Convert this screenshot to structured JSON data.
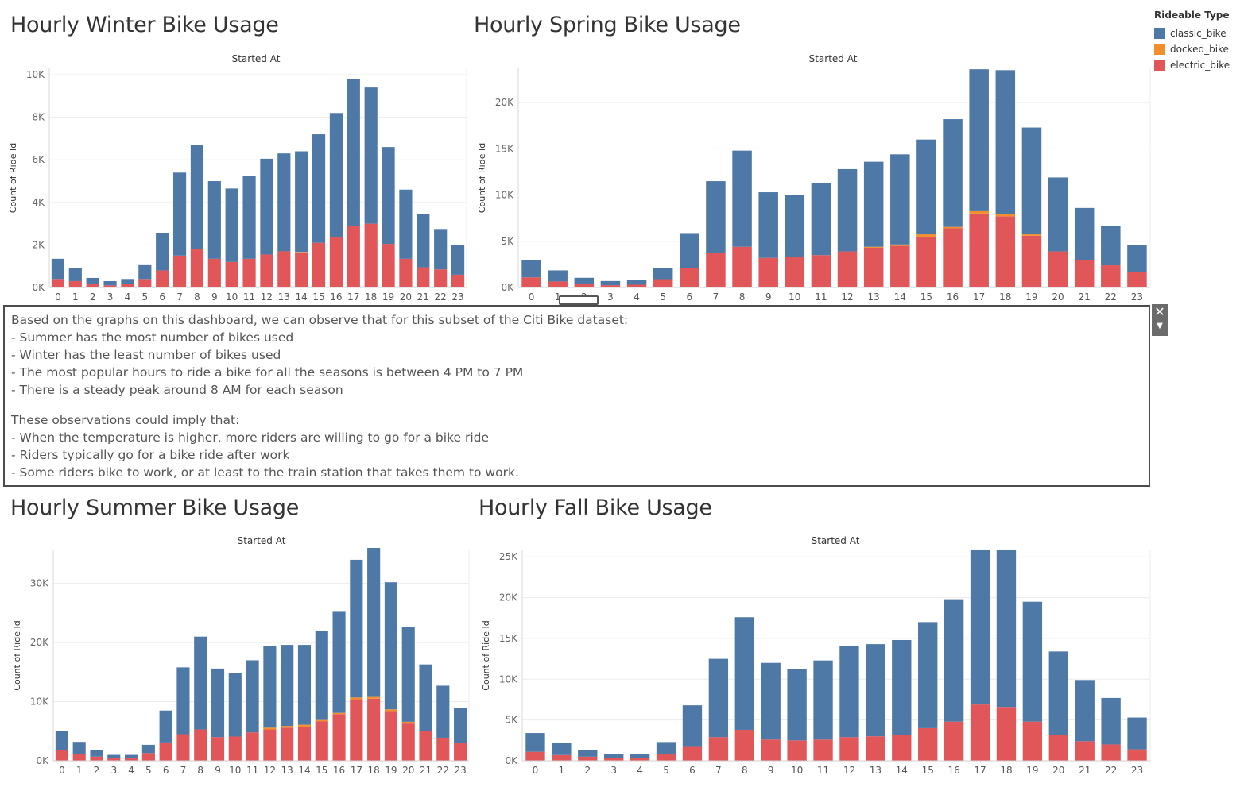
{
  "legend": {
    "title": "Rideable Type",
    "items": [
      {
        "label": "classic_bike",
        "color": "#4e79a7"
      },
      {
        "label": "docked_bike",
        "color": "#f28e2b"
      },
      {
        "label": "electric_bike",
        "color": "#e15759"
      }
    ]
  },
  "notes": {
    "intro": "Based on the graphs on this dashboard, we can observe that for this subset of the Citi Bike dataset:",
    "observations": [
      "- Summer has the most number of bikes used",
      "- Winter has the least number of bikes used",
      "- The most popular hours to ride a bike for all the seasons is between 4 PM to 7 PM",
      "- There is a steady peak around 8 AM for each season"
    ],
    "implications_intro": "These observations could imply that:",
    "implications": [
      "- When the temperature is higher, more riders are willing to go for a bike ride",
      "- Riders typically go for a bike ride after work",
      "- Some riders bike to work, or at least to the train station that takes them to work."
    ]
  },
  "chart_data": [
    {
      "id": "winter",
      "type": "bar",
      "stacked": true,
      "title": "Hourly Winter Bike Usage",
      "xlabel": "Started At",
      "ylabel": "Count of Ride Id",
      "categories": [
        "0",
        "1",
        "2",
        "3",
        "4",
        "5",
        "6",
        "7",
        "8",
        "9",
        "10",
        "11",
        "12",
        "13",
        "14",
        "15",
        "16",
        "17",
        "18",
        "19",
        "20",
        "21",
        "22",
        "23"
      ],
      "ylim": [
        0,
        10300
      ],
      "yticks": [
        0,
        2000,
        4000,
        6000,
        8000,
        10000
      ],
      "ytick_labels": [
        "0K",
        "2K",
        "4K",
        "6K",
        "8K",
        "10K"
      ],
      "series": [
        {
          "name": "electric_bike",
          "color": "#e15759",
          "values": [
            400,
            300,
            150,
            100,
            150,
            400,
            800,
            1500,
            1800,
            1350,
            1200,
            1350,
            1550,
            1700,
            1650,
            2100,
            2350,
            2900,
            3000,
            2050,
            1350,
            950,
            850,
            600
          ]
        },
        {
          "name": "docked_bike",
          "color": "#f28e2b",
          "values": [
            0,
            0,
            0,
            0,
            0,
            0,
            0,
            0,
            0,
            0,
            0,
            0,
            0,
            0,
            20,
            0,
            0,
            0,
            0,
            0,
            0,
            0,
            0,
            0
          ]
        },
        {
          "name": "classic_bike",
          "color": "#4e79a7",
          "values": [
            950,
            600,
            300,
            200,
            250,
            650,
            1750,
            3900,
            4900,
            3650,
            3450,
            3900,
            4500,
            4600,
            4730,
            5100,
            5850,
            6900,
            6400,
            4550,
            3250,
            2500,
            1900,
            1400
          ]
        }
      ]
    },
    {
      "id": "spring",
      "type": "bar",
      "stacked": true,
      "title": "Hourly Spring Bike Usage",
      "xlabel": "Started At",
      "ylabel": "Count of Ride Id",
      "categories": [
        "0",
        "1",
        "2",
        "3",
        "4",
        "5",
        "6",
        "7",
        "8",
        "9",
        "10",
        "11",
        "12",
        "13",
        "14",
        "15",
        "16",
        "17",
        "18",
        "19",
        "20",
        "21",
        "22",
        "23"
      ],
      "ylim": [
        0,
        23700
      ],
      "yticks": [
        0,
        5000,
        10000,
        15000,
        20000
      ],
      "ytick_labels": [
        "0K",
        "5K",
        "10K",
        "15K",
        "20K"
      ],
      "series": [
        {
          "name": "electric_bike",
          "color": "#e15759",
          "values": [
            1100,
            650,
            400,
            250,
            300,
            900,
            2100,
            3700,
            4400,
            3200,
            3300,
            3500,
            3900,
            4300,
            4500,
            5500,
            6400,
            8000,
            7700,
            5600,
            3900,
            3000,
            2400,
            1700
          ]
        },
        {
          "name": "docked_bike",
          "color": "#f28e2b",
          "values": [
            0,
            0,
            0,
            0,
            0,
            0,
            0,
            0,
            0,
            0,
            0,
            0,
            0,
            100,
            150,
            250,
            150,
            250,
            200,
            150,
            0,
            0,
            0,
            0
          ]
        },
        {
          "name": "classic_bike",
          "color": "#4e79a7",
          "values": [
            1900,
            1200,
            650,
            450,
            500,
            1200,
            3700,
            7800,
            10400,
            7100,
            6700,
            7800,
            8900,
            9200,
            9750,
            10250,
            11650,
            15350,
            15600,
            11550,
            8000,
            5600,
            4300,
            2900
          ]
        }
      ]
    },
    {
      "id": "summer",
      "type": "bar",
      "stacked": true,
      "title": "Hourly Summer Bike Usage",
      "xlabel": "Started At",
      "ylabel": "Count of Ride Id",
      "categories": [
        "0",
        "1",
        "2",
        "3",
        "4",
        "5",
        "6",
        "7",
        "8",
        "9",
        "10",
        "11",
        "12",
        "13",
        "14",
        "15",
        "16",
        "17",
        "18",
        "19",
        "20",
        "21",
        "22",
        "23"
      ],
      "ylim": [
        0,
        35600
      ],
      "yticks": [
        0,
        10000,
        20000,
        30000
      ],
      "ytick_labels": [
        "0K",
        "10K",
        "20K",
        "30K"
      ],
      "series": [
        {
          "name": "electric_bike",
          "color": "#e15759",
          "values": [
            1800,
            1200,
            700,
            500,
            500,
            1300,
            3100,
            4500,
            5300,
            4000,
            4100,
            4800,
            5300,
            5600,
            5700,
            6700,
            7900,
            10400,
            10500,
            8400,
            6300,
            5000,
            3900,
            3000
          ]
        },
        {
          "name": "docked_bike",
          "color": "#f28e2b",
          "values": [
            0,
            0,
            0,
            0,
            0,
            0,
            0,
            0,
            0,
            0,
            0,
            0,
            300,
            300,
            400,
            200,
            200,
            300,
            300,
            300,
            300,
            0,
            0,
            0
          ]
        },
        {
          "name": "classic_bike",
          "color": "#4e79a7",
          "values": [
            3300,
            2000,
            1100,
            500,
            500,
            1400,
            5400,
            11300,
            15700,
            11600,
            10700,
            12200,
            13800,
            13700,
            13500,
            15100,
            17100,
            23300,
            25200,
            21500,
            16100,
            11300,
            8800,
            5900
          ]
        }
      ]
    },
    {
      "id": "fall",
      "type": "bar",
      "stacked": true,
      "title": "Hourly Fall Bike Usage",
      "xlabel": "Started At",
      "ylabel": "Count of Ride Id",
      "categories": [
        "0",
        "1",
        "2",
        "3",
        "4",
        "5",
        "6",
        "7",
        "8",
        "9",
        "10",
        "11",
        "12",
        "13",
        "14",
        "15",
        "16",
        "17",
        "18",
        "19",
        "20",
        "21",
        "22",
        "23"
      ],
      "ylim": [
        0,
        25800
      ],
      "yticks": [
        0,
        5000,
        10000,
        15000,
        20000,
        25000
      ],
      "ytick_labels": [
        "0K",
        "5K",
        "10K",
        "15K",
        "20K",
        "25K"
      ],
      "series": [
        {
          "name": "electric_bike",
          "color": "#e15759",
          "values": [
            1100,
            700,
            500,
            300,
            300,
            800,
            1700,
            2900,
            3800,
            2600,
            2500,
            2600,
            2900,
            3000,
            3200,
            4000,
            4800,
            6900,
            6600,
            4800,
            3200,
            2400,
            2000,
            1400
          ]
        },
        {
          "name": "docked_bike",
          "color": "#f28e2b",
          "values": [
            0,
            0,
            0,
            0,
            0,
            0,
            0,
            0,
            0,
            0,
            0,
            0,
            0,
            0,
            0,
            0,
            0,
            0,
            0,
            0,
            0,
            0,
            0,
            0
          ]
        },
        {
          "name": "classic_bike",
          "color": "#4e79a7",
          "values": [
            2300,
            1500,
            800,
            500,
            500,
            1500,
            5100,
            9600,
            13800,
            9400,
            8700,
            9700,
            11200,
            11300,
            11600,
            13000,
            15000,
            19000,
            19300,
            14700,
            10200,
            7500,
            5700,
            3900
          ]
        }
      ]
    }
  ]
}
